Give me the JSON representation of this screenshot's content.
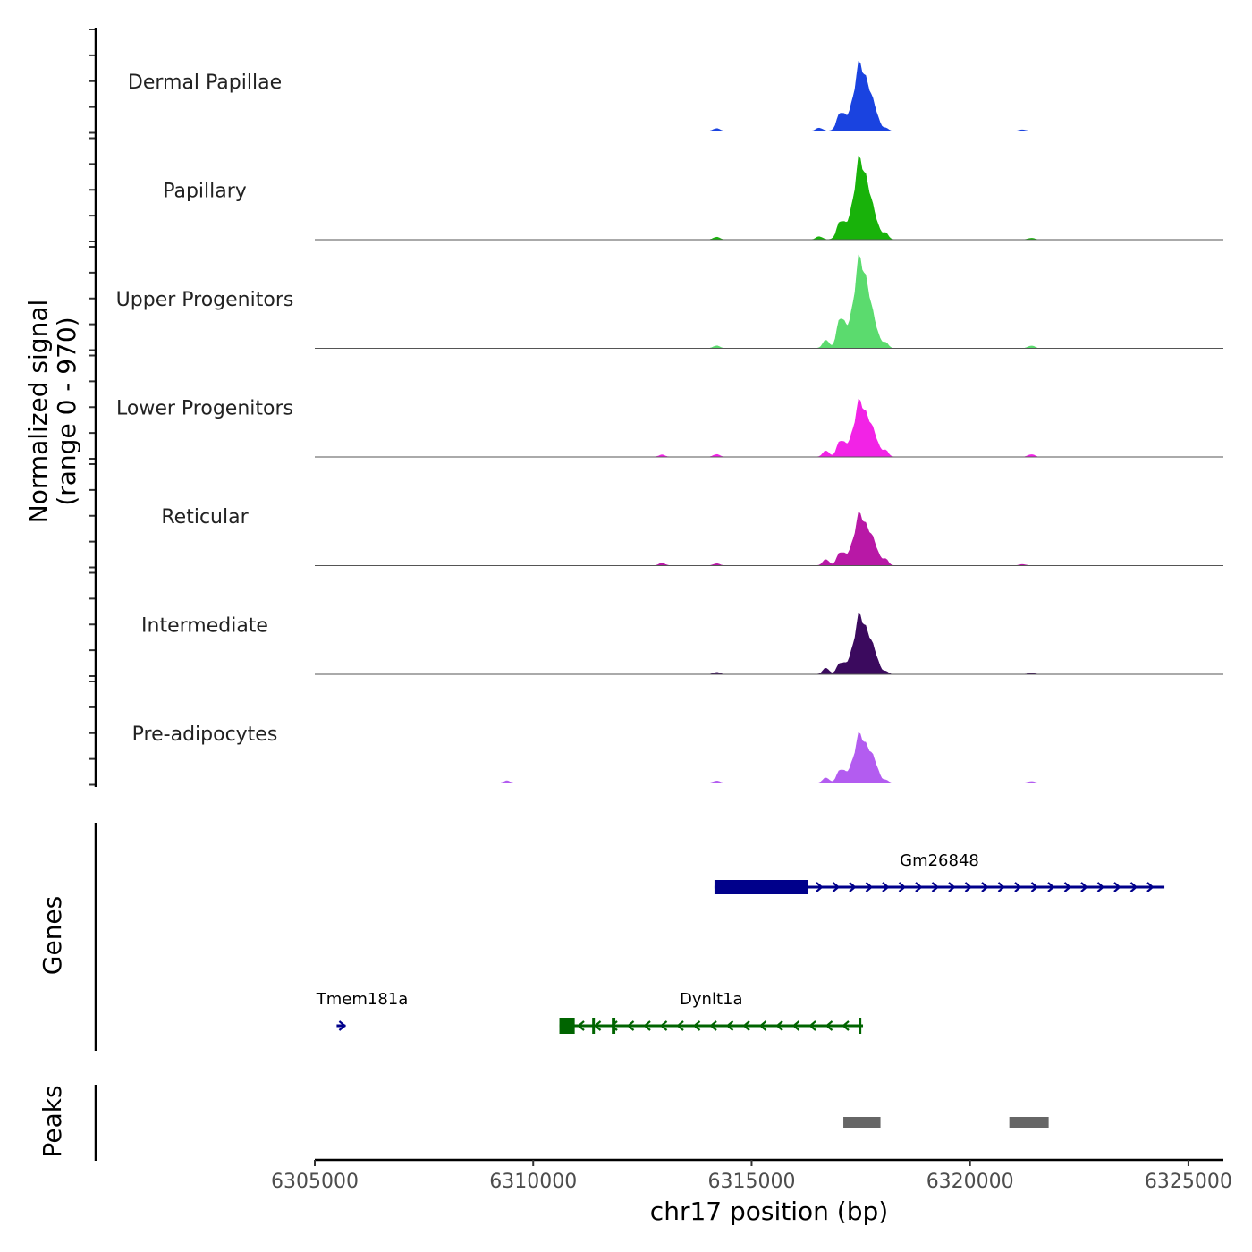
{
  "chart_data": {
    "type": "coverage",
    "chromosome": "chr17",
    "x_range": [
      6305000,
      6325800
    ],
    "xlabel": "chr17 position (bp)",
    "xticks": [
      6305000,
      6310000,
      6315000,
      6320000,
      6325000
    ],
    "xtick_labels": [
      "6305000",
      "6310000",
      "6315000",
      "6320000",
      "6325000"
    ],
    "ylabel_line1": "Normalized signal",
    "ylabel_line2": "(range 0 - 970)",
    "y_range": [
      0,
      970
    ],
    "tracks": [
      {
        "name": "Dermal Papillae",
        "color": "#1a43e0",
        "peaks": [
          [
            6314200,
            25
          ],
          [
            6316550,
            30
          ],
          [
            6317050,
            180
          ],
          [
            6317500,
            650
          ],
          [
            6317800,
            180
          ],
          [
            6318050,
            30
          ],
          [
            6321200,
            12
          ]
        ]
      },
      {
        "name": "Papillary",
        "color": "#18b20a",
        "peaks": [
          [
            6314200,
            25
          ],
          [
            6316550,
            30
          ],
          [
            6317050,
            180
          ],
          [
            6317500,
            780
          ],
          [
            6317800,
            180
          ],
          [
            6318050,
            70
          ],
          [
            6321400,
            15
          ]
        ]
      },
      {
        "name": "Upper Progenitors",
        "color": "#5bdb6e",
        "peaks": [
          [
            6314200,
            25
          ],
          [
            6316700,
            80
          ],
          [
            6317050,
            300
          ],
          [
            6317500,
            870
          ],
          [
            6317800,
            180
          ],
          [
            6318050,
            60
          ],
          [
            6321400,
            25
          ]
        ]
      },
      {
        "name": "Lower Progenitors",
        "color": "#f223e6",
        "peaks": [
          [
            6312950,
            20
          ],
          [
            6314200,
            25
          ],
          [
            6316700,
            60
          ],
          [
            6317050,
            160
          ],
          [
            6317500,
            540
          ],
          [
            6317800,
            180
          ],
          [
            6318050,
            70
          ],
          [
            6321400,
            25
          ]
        ]
      },
      {
        "name": "Reticular",
        "color": "#b818a6",
        "peaks": [
          [
            6312950,
            25
          ],
          [
            6314200,
            20
          ],
          [
            6316700,
            60
          ],
          [
            6317050,
            130
          ],
          [
            6317500,
            500
          ],
          [
            6317800,
            180
          ],
          [
            6318050,
            70
          ],
          [
            6321200,
            12
          ]
        ]
      },
      {
        "name": "Intermediate",
        "color": "#3b0a5e",
        "peaks": [
          [
            6314200,
            20
          ],
          [
            6316700,
            60
          ],
          [
            6317050,
            110
          ],
          [
            6317500,
            570
          ],
          [
            6317800,
            180
          ],
          [
            6318050,
            30
          ],
          [
            6321400,
            12
          ]
        ]
      },
      {
        "name": "Pre-adipocytes",
        "color": "#b35cf0",
        "peaks": [
          [
            6309400,
            20
          ],
          [
            6314200,
            20
          ],
          [
            6316700,
            50
          ],
          [
            6317050,
            130
          ],
          [
            6317500,
            470
          ],
          [
            6317800,
            180
          ],
          [
            6318050,
            30
          ],
          [
            6321400,
            15
          ]
        ]
      }
    ],
    "genes_label": "Genes",
    "genes": [
      {
        "name": "Gm26848",
        "strand": "+",
        "color": "#00008b",
        "start": 6314150,
        "end": 6324450,
        "row": 1,
        "exons": [
          [
            6314150,
            6316300
          ]
        ]
      },
      {
        "name": "Tmem181a",
        "strand": "+",
        "color": "#00008b",
        "start": 6305500,
        "end": 6305700,
        "row": 2,
        "exons": []
      },
      {
        "name": "Dynlt1a",
        "strand": "-",
        "color": "#006400",
        "start": 6310600,
        "end": 6317550,
        "row": 2,
        "exons": [
          [
            6310600,
            6310950
          ],
          [
            6311350,
            6311400
          ],
          [
            6311800,
            6311880
          ],
          [
            6317450,
            6317510
          ]
        ]
      }
    ],
    "peaks_label": "Peaks",
    "peak_regions": [
      [
        6317100,
        6317950
      ],
      [
        6320900,
        6321800
      ]
    ],
    "peak_color": "#666666"
  }
}
